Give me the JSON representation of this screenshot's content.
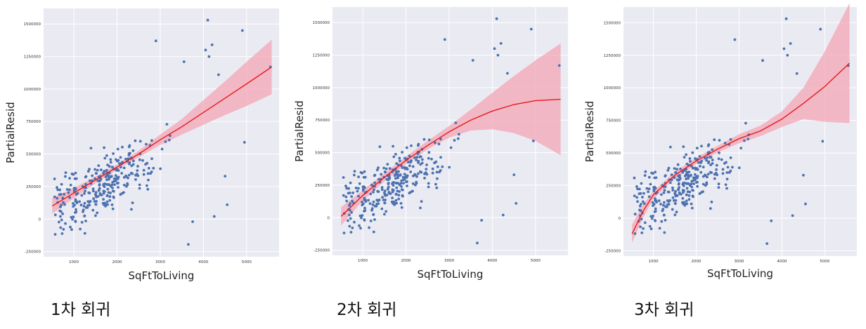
{
  "colors": {
    "plot_bg": "#EAEAF2",
    "grid": "#FFFFFF",
    "point": "#4C72B0",
    "fit_line": "#E41A1C",
    "ci_band": "#F4A6B4"
  },
  "chart_data": [
    {
      "type": "scatter",
      "caption": "1차 회귀",
      "fit": "linear regression line with confidence band",
      "xlabel": "SqFtToLiving",
      "ylabel": "PartialResid",
      "xlim": [
        300,
        5750
      ],
      "ylim": [
        -290000,
        1620000
      ],
      "x_ticks": [
        1000,
        2000,
        3000,
        4000,
        5000
      ],
      "x_tick_labels": [
        "1000",
        "2000",
        "3000",
        "4000",
        "5000"
      ],
      "y_ticks": [
        -250000,
        0,
        250000,
        500000,
        750000,
        1000000,
        1250000,
        1500000
      ],
      "y_tick_labels": [
        "-250000",
        "0",
        "250000",
        "500000",
        "750000",
        "1000000",
        "1250000",
        "1500000"
      ],
      "grid": true,
      "fit_line": {
        "x": [
          500,
          1000,
          1500,
          2000,
          2500,
          3000,
          3500,
          4000,
          4500,
          5000,
          5580
        ],
        "y": [
          100000,
          200000,
          300000,
          400000,
          500000,
          610000,
          710000,
          820000,
          930000,
          1040000,
          1170000
        ]
      },
      "ci_band": {
        "x": [
          500,
          1000,
          1500,
          2000,
          2500,
          3000,
          3500,
          4000,
          4500,
          5000,
          5580
        ],
        "lower": [
          40000,
          160000,
          275000,
          380000,
          475000,
          570000,
          650000,
          725000,
          800000,
          870000,
          960000
        ],
        "upper": [
          160000,
          240000,
          325000,
          420000,
          525000,
          650000,
          770000,
          915000,
          1060000,
          1210000,
          1380000
        ]
      },
      "outliers": {
        "x": [
          4100,
          4130,
          4200,
          4900,
          2900,
          3550,
          4350,
          4050,
          4950,
          5550,
          3650,
          3750,
          4500,
          4250,
          4550
        ],
        "y": [
          1530000,
          1250000,
          1340000,
          1450000,
          1370000,
          1210000,
          1110000,
          1300000,
          590000,
          1170000,
          -195000,
          -20000,
          330000,
          20000,
          110000
        ]
      }
    },
    {
      "type": "scatter",
      "caption": "2차 회귀",
      "fit": "quadratic regression curve with confidence band",
      "xlabel": "SqFtToLiving",
      "ylabel": "PartialResid",
      "xlim": [
        300,
        5750
      ],
      "ylim": [
        -290000,
        1620000
      ],
      "x_ticks": [
        1000,
        2000,
        3000,
        4000,
        5000
      ],
      "x_tick_labels": [
        "1000",
        "2000",
        "3000",
        "4000",
        "5000"
      ],
      "y_ticks": [
        -250000,
        0,
        250000,
        500000,
        750000,
        1000000,
        1250000,
        1500000
      ],
      "y_tick_labels": [
        "-250000",
        "0",
        "250000",
        "500000",
        "750000",
        "1000000",
        "1250000",
        "1500000"
      ],
      "grid": true,
      "fit_line": {
        "x": [
          500,
          1000,
          1500,
          2000,
          2500,
          3000,
          3500,
          4000,
          4500,
          5000,
          5580
        ],
        "y": [
          10000,
          170000,
          310000,
          440000,
          555000,
          660000,
          750000,
          820000,
          870000,
          900000,
          910000
        ]
      },
      "ci_band": {
        "x": [
          500,
          1000,
          1500,
          2000,
          2500,
          3000,
          3500,
          4000,
          4500,
          5000,
          5580
        ],
        "lower": [
          -60000,
          130000,
          280000,
          410000,
          525000,
          615000,
          670000,
          680000,
          650000,
          590000,
          480000
        ],
        "upper": [
          80000,
          210000,
          340000,
          470000,
          590000,
          705000,
          830000,
          960000,
          1090000,
          1210000,
          1340000
        ]
      },
      "outliers": {
        "x": [
          4100,
          4130,
          4200,
          4900,
          2900,
          3550,
          4350,
          4050,
          4950,
          5550,
          3650,
          3750,
          4500,
          4250,
          4550
        ],
        "y": [
          1530000,
          1250000,
          1340000,
          1450000,
          1370000,
          1210000,
          1110000,
          1300000,
          590000,
          1170000,
          -195000,
          -20000,
          330000,
          20000,
          110000
        ]
      }
    },
    {
      "type": "scatter",
      "caption": "3차 회귀",
      "fit": "cubic regression curve with confidence band",
      "xlabel": "SqFtToLiving",
      "ylabel": "PartialResid",
      "xlim": [
        300,
        5750
      ],
      "ylim": [
        -290000,
        1620000
      ],
      "x_ticks": [
        1000,
        2000,
        3000,
        4000,
        5000
      ],
      "x_tick_labels": [
        "1000",
        "2000",
        "3000",
        "4000",
        "5000"
      ],
      "y_ticks": [
        -250000,
        0,
        250000,
        500000,
        750000,
        1000000,
        1250000,
        1500000
      ],
      "y_tick_labels": [
        "-250000",
        "0",
        "250000",
        "500000",
        "750000",
        "1000000",
        "1250000",
        "1500000"
      ],
      "grid": true,
      "fit_line": {
        "x": [
          500,
          750,
          1000,
          1500,
          2000,
          2500,
          3000,
          3500,
          4000,
          4500,
          5000,
          5580
        ],
        "y": [
          -120000,
          50000,
          180000,
          330000,
          440000,
          530000,
          610000,
          670000,
          760000,
          880000,
          1010000,
          1190000
        ]
      },
      "ci_band": {
        "x": [
          500,
          750,
          1000,
          1500,
          2000,
          2500,
          3000,
          3500,
          4000,
          4500,
          5000,
          5580
        ],
        "lower": [
          -190000,
          0,
          150000,
          305000,
          415000,
          505000,
          575000,
          630000,
          700000,
          760000,
          740000,
          730000
        ],
        "upper": [
          -50000,
          100000,
          210000,
          355000,
          465000,
          555000,
          645000,
          710000,
          820000,
          1000000,
          1280000,
          1650000
        ]
      },
      "outliers": {
        "x": [
          4100,
          4130,
          4200,
          4900,
          2900,
          3550,
          4350,
          4050,
          4950,
          5550,
          3650,
          3750,
          4500,
          4250,
          4550
        ],
        "y": [
          1530000,
          1250000,
          1340000,
          1450000,
          1370000,
          1210000,
          1110000,
          1300000,
          590000,
          1170000,
          -195000,
          -20000,
          330000,
          20000,
          110000
        ]
      }
    }
  ]
}
